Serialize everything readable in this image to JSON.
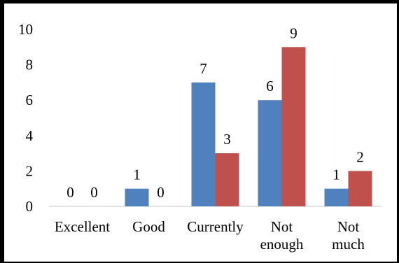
{
  "chart_data": {
    "type": "bar",
    "categories": [
      [
        "Excellent"
      ],
      [
        "Good"
      ],
      [
        "Currently"
      ],
      [
        "Not",
        "enough"
      ],
      [
        "Not",
        "much"
      ]
    ],
    "series": [
      {
        "values": [
          0,
          1,
          7,
          6,
          1
        ],
        "color": "#4f81bd"
      },
      {
        "values": [
          0,
          0,
          3,
          9,
          2
        ],
        "color": "#c0504d"
      }
    ],
    "ylim": [
      0,
      10
    ],
    "yticks": [
      "0",
      "2",
      "4",
      "6",
      "8",
      "10"
    ],
    "data_labels": true,
    "grid": false,
    "legend": false
  }
}
